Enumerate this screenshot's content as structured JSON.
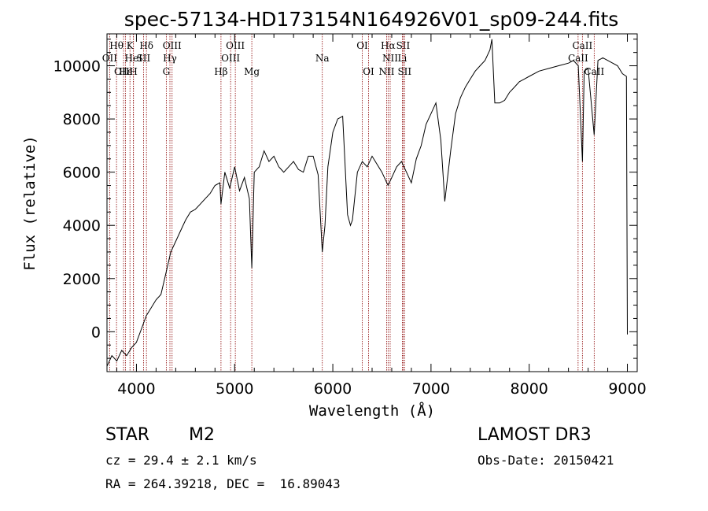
{
  "chart_data": {
    "type": "line",
    "title": "spec-57134-HD173154N164926V01_sp09-244.fits",
    "xlabel": "Wavelength (Å)",
    "ylabel": "Flux (relative)",
    "xlim": [
      3700,
      9100
    ],
    "ylim": [
      -1500,
      11200
    ],
    "xticks": [
      "4000",
      "5000",
      "6000",
      "7000",
      "8000",
      "9000"
    ],
    "yticks": [
      "0",
      "2000",
      "4000",
      "6000",
      "8000",
      "10000"
    ],
    "series": [
      {
        "x": [
          3700,
          3750,
          3800,
          3850,
          3900,
          3950,
          4000,
          4050,
          4100,
          4150,
          4200,
          4250,
          4300,
          4350,
          4400,
          4450,
          4500,
          4550,
          4600,
          4650,
          4700,
          4750,
          4800,
          4850,
          4861,
          4900,
          4950,
          5000,
          5050,
          5100,
          5150,
          5175,
          5200,
          5250,
          5300,
          5350,
          5400,
          5450,
          5500,
          5550,
          5600,
          5650,
          5700,
          5750,
          5800,
          5850,
          5893,
          5920,
          5950,
          6000,
          6050,
          6100,
          6150,
          6180,
          6200,
          6250,
          6300,
          6350,
          6400,
          6450,
          6500,
          6550,
          6563,
          6600,
          6650,
          6700,
          6750,
          6800,
          6850,
          6900,
          6950,
          7000,
          7050,
          7100,
          7140,
          7200,
          7250,
          7300,
          7350,
          7400,
          7450,
          7500,
          7550,
          7600,
          7620,
          7650,
          7700,
          7750,
          7800,
          7850,
          7900,
          7950,
          8000,
          8100,
          8200,
          8300,
          8400,
          8450,
          8500,
          8542,
          8560,
          8600,
          8662,
          8700,
          8750,
          8800,
          8850,
          8900,
          8950,
          8990,
          9000
        ],
        "y": [
          -1300,
          -900,
          -1100,
          -700,
          -900,
          -600,
          -400,
          100,
          600,
          900,
          1200,
          1400,
          2200,
          3000,
          3400,
          3800,
          4200,
          4500,
          4600,
          4800,
          5000,
          5200,
          5500,
          5600,
          4800,
          6000,
          5400,
          6200,
          5300,
          5800,
          5000,
          2400,
          6000,
          6200,
          6800,
          6400,
          6600,
          6200,
          6000,
          6200,
          6400,
          6100,
          6000,
          6600,
          6600,
          5900,
          3000,
          4000,
          6200,
          7500,
          8000,
          8100,
          4400,
          4000,
          4200,
          6000,
          6400,
          6200,
          6600,
          6300,
          6000,
          5600,
          5500,
          5800,
          6200,
          6400,
          6000,
          5600,
          6500,
          7000,
          7800,
          8200,
          8600,
          7200,
          4900,
          6800,
          8200,
          8800,
          9200,
          9500,
          9800,
          10000,
          10200,
          10600,
          11000,
          8600,
          8600,
          8700,
          9000,
          9200,
          9400,
          9500,
          9600,
          9800,
          9900,
          10000,
          10100,
          10200,
          10000,
          6400,
          9800,
          9900,
          7400,
          10200,
          10300,
          10200,
          10100,
          10000,
          9700,
          9600,
          -100
        ]
      }
    ],
    "lines": [
      {
        "label": "Hθ",
        "wl": 3797,
        "row": 1
      },
      {
        "label": "OII",
        "wl": 3727,
        "row": 2
      },
      {
        "label": "OIII",
        "wl": 3869,
        "row": 3
      },
      {
        "label": "Hε",
        "wl": 3889,
        "row": 3
      },
      {
        "label": "K",
        "wl": 3934,
        "row": 1
      },
      {
        "label": "HeI",
        "wl": 3970,
        "row": 2
      },
      {
        "label": "H",
        "wl": 3969,
        "row": 3
      },
      {
        "label": "SII",
        "wl": 4072,
        "row": 2
      },
      {
        "label": "Hδ",
        "wl": 4102,
        "row": 1
      },
      {
        "label": "OIII",
        "wl": 4363,
        "row": 1
      },
      {
        "label": "Hγ",
        "wl": 4341,
        "row": 2
      },
      {
        "label": "G",
        "wl": 4304,
        "row": 3
      },
      {
        "label": "Hβ",
        "wl": 4861,
        "row": 3
      },
      {
        "label": "OIII",
        "wl": 5007,
        "row": 1
      },
      {
        "label": "OIII",
        "wl": 4959,
        "row": 2
      },
      {
        "label": "Mg",
        "wl": 5175,
        "row": 3
      },
      {
        "label": "Na",
        "wl": 5893,
        "row": 2
      },
      {
        "label": "OI",
        "wl": 6300,
        "row": 1
      },
      {
        "label": "OI",
        "wl": 6364,
        "row": 3
      },
      {
        "label": "Hα",
        "wl": 6563,
        "row": 1
      },
      {
        "label": "SII",
        "wl": 6716,
        "row": 1
      },
      {
        "label": "NII",
        "wl": 6584,
        "row": 2
      },
      {
        "label": "Li",
        "wl": 6708,
        "row": 2
      },
      {
        "label": "NII",
        "wl": 6548,
        "row": 3
      },
      {
        "label": "SII",
        "wl": 6731,
        "row": 3
      },
      {
        "label": "CaII",
        "wl": 8542,
        "row": 1
      },
      {
        "label": "CaII",
        "wl": 8498,
        "row": 2
      },
      {
        "label": "CaII",
        "wl": 8662,
        "row": 3
      }
    ]
  },
  "info": {
    "star_label": "STAR",
    "class_label": "M2",
    "cz": "cz = 29.4 ± 2.1 km/s",
    "radec": "RA = 264.39218, DEC =  16.89043",
    "survey": "LAMOST DR3",
    "obsdate": "Obs-Date: 20150421"
  },
  "colors": {
    "line_marker": "#8b0000",
    "spectrum": "#000000"
  }
}
